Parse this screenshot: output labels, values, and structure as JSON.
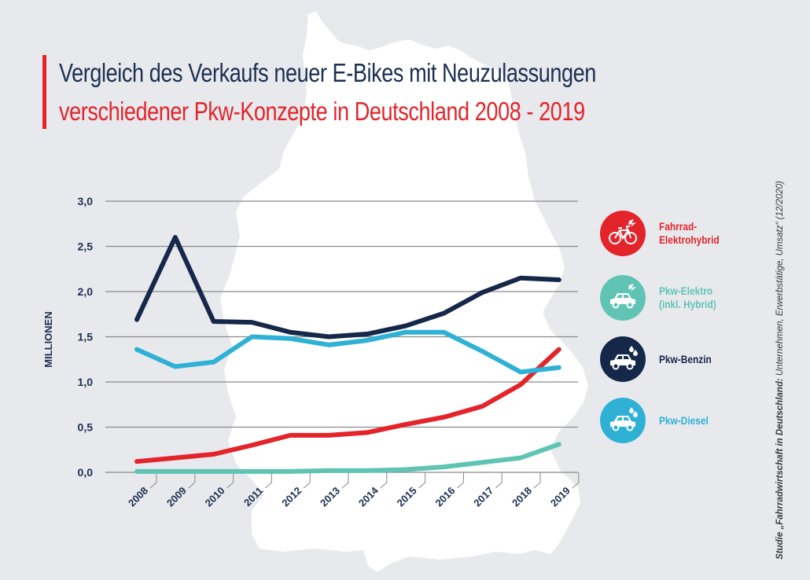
{
  "title": {
    "line1": "Vergleich des Verkaufs neuer E-Bikes mit Neuzulassungen",
    "line2": "verschiedener Pkw-Konzepte in Deutschland 2008 - 2019"
  },
  "source": {
    "prefix": "Studie „Fahrradwirtschaft in Deutschland:",
    "suffix": " Unternehmen, Erwerbstätige, Umsatz“ (12/2020)"
  },
  "colors": {
    "background": "#e8e9ed",
    "map": "#ffffff",
    "title_dark": "#1c2f50",
    "accent_red": "#e3242b",
    "gridline": "#8a8a8a"
  },
  "legend": [
    {
      "label": "Fahrrad-\nElektrohybrid",
      "color": "#e3242b",
      "icon": "bicycle-lightning-icon"
    },
    {
      "label": "Pkw-Elektro\n(inkl. Hybrid)",
      "color": "#5fc4b4",
      "icon": "car-lightning-icon"
    },
    {
      "label": "Pkw-Benzin",
      "color": "#16284a",
      "icon": "car-drops-icon"
    },
    {
      "label": "Pkw-Diesel",
      "color": "#2fb1d6",
      "icon": "car-drops-icon"
    }
  ],
  "chart_data": {
    "type": "line",
    "title": "Vergleich des Verkaufs neuer E-Bikes mit Neuzulassungen verschiedener Pkw-Konzepte in Deutschland 2008 - 2019",
    "xlabel": "",
    "ylabel": "MILLIONEN",
    "ylim": [
      0,
      3.0
    ],
    "grid": true,
    "legend_position": "right",
    "x": [
      "2008",
      "2009",
      "2010",
      "2011",
      "2012",
      "2013",
      "2014",
      "2015",
      "2016",
      "2017",
      "2018",
      "2019"
    ],
    "yticks": [
      "0,0",
      "0,5",
      "1,0",
      "1,5",
      "2,0",
      "2,5",
      "3,0"
    ],
    "ytick_values": [
      0,
      0.5,
      1.0,
      1.5,
      2.0,
      2.5,
      3.0
    ],
    "series": [
      {
        "name": "Fahrrad-Elektrohybrid",
        "color": "#e3242b",
        "values": [
          0.12,
          0.16,
          0.2,
          0.3,
          0.41,
          0.41,
          0.44,
          0.53,
          0.61,
          0.73,
          0.97,
          1.36
        ]
      },
      {
        "name": "Pkw-Elektro (inkl. Hybrid)",
        "color": "#5fc4b4",
        "values": [
          0.01,
          0.01,
          0.01,
          0.01,
          0.01,
          0.02,
          0.02,
          0.03,
          0.06,
          0.11,
          0.16,
          0.31
        ]
      },
      {
        "name": "Pkw-Benzin",
        "color": "#16284a",
        "values": [
          1.69,
          2.6,
          1.67,
          1.66,
          1.55,
          1.5,
          1.53,
          1.62,
          1.76,
          1.99,
          2.15,
          2.13
        ]
      },
      {
        "name": "Pkw-Diesel",
        "color": "#2fb1d6",
        "values": [
          1.36,
          1.17,
          1.22,
          1.5,
          1.48,
          1.41,
          1.46,
          1.55,
          1.55,
          1.34,
          1.11,
          1.16
        ]
      }
    ]
  }
}
